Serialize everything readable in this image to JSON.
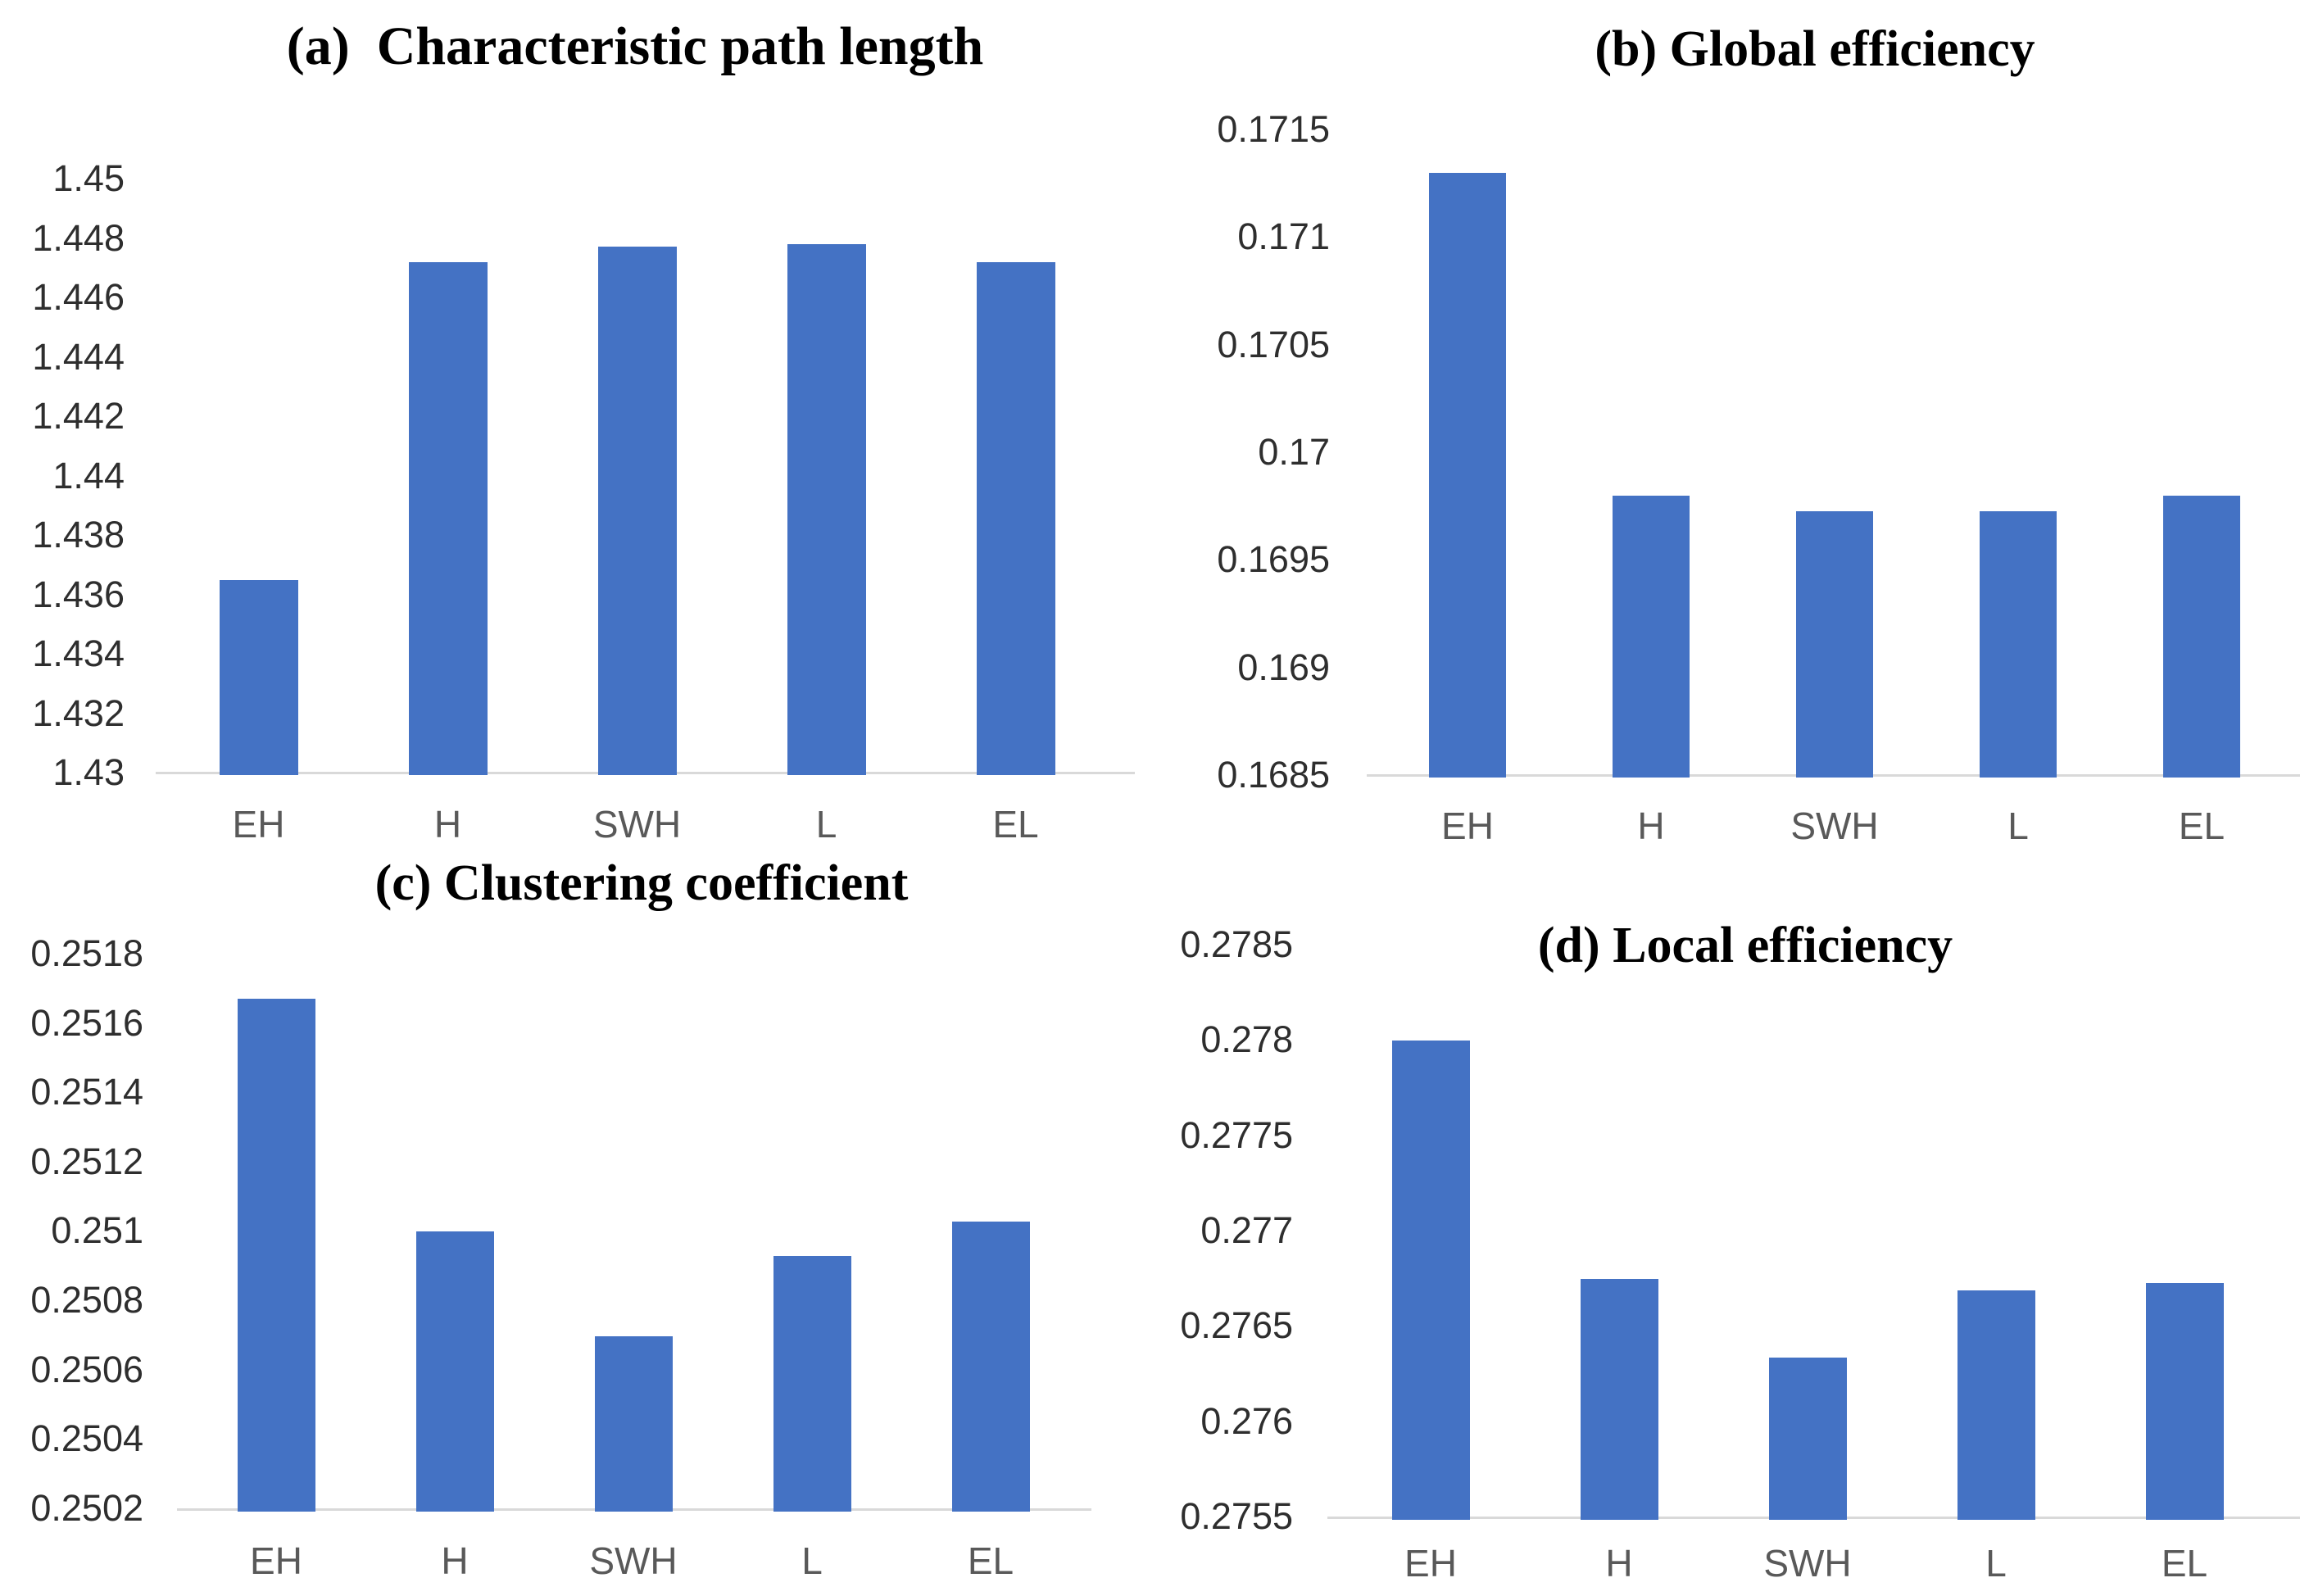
{
  "styles": {
    "background": "#FFFFFF",
    "bar_color": "#4472C4",
    "axis_line_color": "#D9D9D9",
    "tick_label_color": "#2E2E2E",
    "category_label_color": "#595959",
    "title_color": "#000000"
  },
  "chart_data": [
    {
      "id": "a",
      "type": "bar",
      "title": "(a)  Characteristic path length",
      "categories": [
        "EH",
        "H",
        "SWH",
        "L",
        "EL"
      ],
      "values": [
        1.4365,
        1.4472,
        1.4477,
        1.4478,
        1.4472
      ],
      "ylim": [
        1.43,
        1.45
      ],
      "yticks": [
        "1.45",
        "1.448",
        "1.446",
        "1.444",
        "1.442",
        "1.44",
        "1.438",
        "1.436",
        "1.434",
        "1.432",
        "1.43"
      ],
      "xlabel": "",
      "ylabel": "",
      "grid": false,
      "legend_position": "none"
    },
    {
      "id": "b",
      "type": "bar",
      "title": "(b) Global efficiency",
      "categories": [
        "EH",
        "H",
        "SWH",
        "L",
        "EL"
      ],
      "values": [
        0.1713,
        0.1698,
        0.16973,
        0.16973,
        0.1698
      ],
      "ylim": [
        0.1685,
        0.1715
      ],
      "yticks": [
        "0.1715",
        "0.171",
        "0.1705",
        "0.17",
        "0.1695",
        "0.169",
        "0.1685"
      ],
      "xlabel": "",
      "ylabel": "",
      "grid": false,
      "legend_position": "none"
    },
    {
      "id": "c",
      "type": "bar",
      "title": "(c) Clustering coefficient",
      "categories": [
        "EH",
        "H",
        "SWH",
        "L",
        "EL"
      ],
      "values": [
        0.25167,
        0.251,
        0.2507,
        0.25093,
        0.25103
      ],
      "ylim": [
        0.2502,
        0.2518
      ],
      "yticks": [
        "0.2518",
        "0.2516",
        "0.2514",
        "0.2512",
        "0.251",
        "0.2508",
        "0.2506",
        "0.2504",
        "0.2502"
      ],
      "xlabel": "",
      "ylabel": "",
      "grid": false,
      "legend_position": "none"
    },
    {
      "id": "d",
      "type": "bar",
      "title": "(d) Local efficiency",
      "categories": [
        "EH",
        "H",
        "SWH",
        "L",
        "EL"
      ],
      "values": [
        0.278,
        0.27675,
        0.27634,
        0.27669,
        0.27673
      ],
      "ylim": [
        0.2755,
        0.2785
      ],
      "yticks": [
        "0.2785",
        "0.278",
        "0.2775",
        "0.277",
        "0.2765",
        "0.276",
        "0.2755"
      ],
      "xlabel": "",
      "ylabel": "",
      "grid": false,
      "legend_position": "none"
    }
  ]
}
